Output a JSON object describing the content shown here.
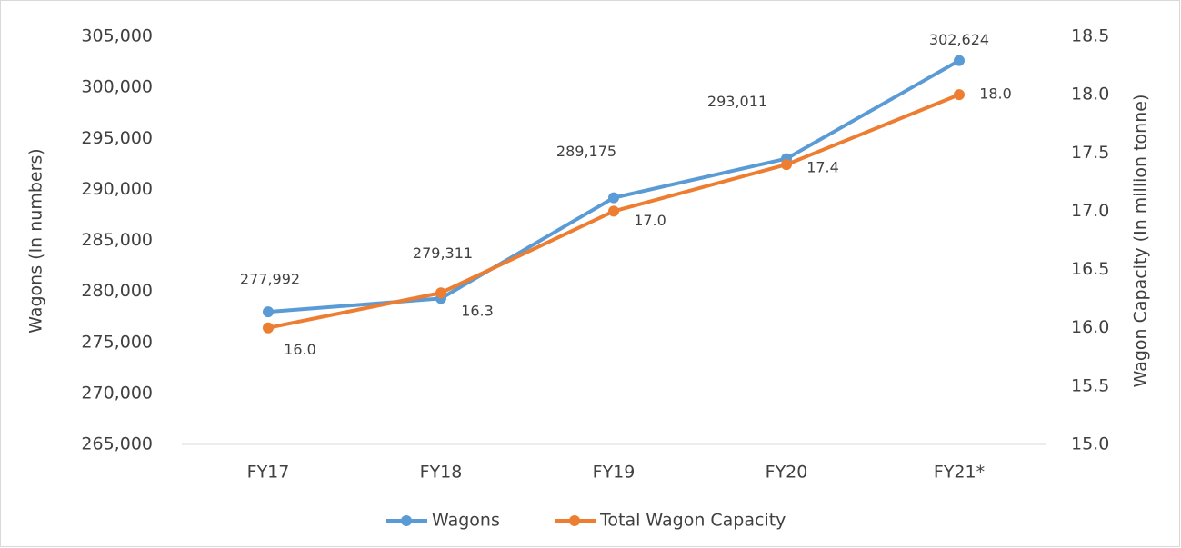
{
  "chart_data": {
    "type": "line",
    "categories": [
      "FY17",
      "FY18",
      "FY19",
      "FY20",
      "FY21*"
    ],
    "y_label": "Wagons (In numbers)",
    "y2_label": "Wagon Capacity (In million tonne)",
    "ylim": [
      265000,
      305000
    ],
    "yticks": [
      {
        "value": 265000,
        "label": "265,000"
      },
      {
        "value": 270000,
        "label": "270,000"
      },
      {
        "value": 275000,
        "label": "275,000"
      },
      {
        "value": 280000,
        "label": "280,000"
      },
      {
        "value": 285000,
        "label": "285,000"
      },
      {
        "value": 290000,
        "label": "290,000"
      },
      {
        "value": 295000,
        "label": "295,000"
      },
      {
        "value": 300000,
        "label": "300,000"
      },
      {
        "value": 305000,
        "label": "305,000"
      }
    ],
    "y2lim": [
      15,
      18.5
    ],
    "y2ticks": [
      {
        "value": 15,
        "label": "15.0"
      },
      15.5,
      {
        "value": 16,
        "label": "16.0"
      },
      16.5,
      {
        "value": 17,
        "label": "17.0"
      },
      17.5,
      {
        "value": 18,
        "label": "18.0"
      },
      18.5
    ],
    "grid": false,
    "legend": "bottom",
    "series": [
      {
        "name": "Wagons",
        "color": "#5b9bd5",
        "values": [
          277992,
          279311,
          289175,
          293011,
          302624
        ],
        "value_labels": [
          "277,992",
          "279,311",
          "289,175",
          "293,011",
          "302,624"
        ]
      },
      {
        "name": "Total Wagon Capacity",
        "color": "#ed7d31",
        "axis": "y2",
        "values": [
          16,
          16.3,
          17,
          17.4,
          18
        ],
        "value_labels": [
          "16.0",
          "16.3",
          "17.0",
          "17.4",
          "18.0"
        ]
      }
    ]
  }
}
